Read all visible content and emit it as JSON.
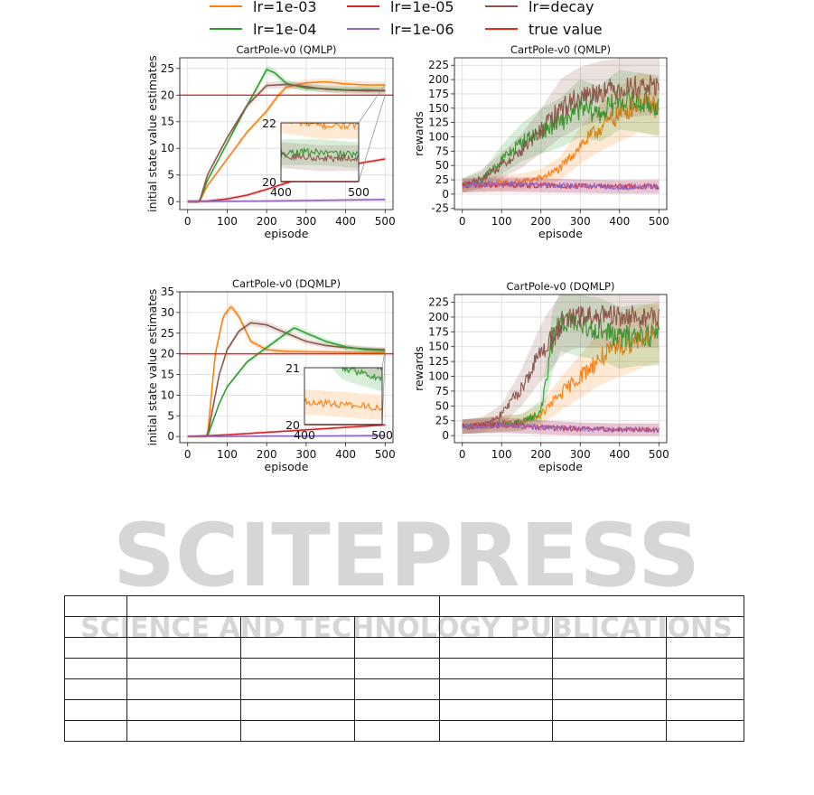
{
  "legend": [
    {
      "label": "lr=1e-03",
      "color": "#ff7f0e"
    },
    {
      "label": "lr=1e-05",
      "color": "#d62728"
    },
    {
      "label": "lr=decay",
      "color": "#8c564b"
    },
    {
      "label": "lr=1e-04",
      "color": "#2ca02c"
    },
    {
      "label": "lr=1e-06",
      "color": "#9467bd"
    },
    {
      "label": "true value",
      "color": "#e8291c"
    }
  ],
  "watermark": {
    "main": "SCITEPRESS",
    "sub": "SCIENCE AND TECHNOLOGY PUBLICATIONS"
  },
  "chart_data": [
    {
      "type": "line",
      "title": "CartPole-v0 (QMLP)",
      "xlabel": "episode",
      "ylabel": "initial state value estimates",
      "xlim": [
        -20,
        520
      ],
      "ylim": [
        -1.5,
        27
      ],
      "xticks": [
        0,
        100,
        200,
        300,
        400,
        500
      ],
      "yticks": [
        0,
        5,
        10,
        15,
        20,
        25
      ],
      "hline": 20,
      "series": [
        {
          "name": "lr=1e-03",
          "x": [
            0,
            20,
            30,
            50,
            100,
            150,
            200,
            230,
            250,
            300,
            350,
            400,
            450,
            500
          ],
          "y": [
            0,
            0,
            0,
            3,
            8,
            13,
            17,
            20,
            21.5,
            22.3,
            22.5,
            22.1,
            21.9,
            21.9
          ]
        },
        {
          "name": "lr=1e-04",
          "x": [
            0,
            20,
            30,
            50,
            100,
            150,
            180,
            200,
            220,
            250,
            300,
            350,
            400,
            450,
            500
          ],
          "y": [
            0,
            0,
            0,
            4,
            11,
            18,
            22,
            24.8,
            24.2,
            22.2,
            21.3,
            21.2,
            21.0,
            21.0,
            20.9
          ]
        },
        {
          "name": "lr=decay",
          "x": [
            0,
            20,
            30,
            50,
            100,
            150,
            200,
            250,
            300,
            350,
            400,
            450,
            500
          ],
          "y": [
            0,
            0,
            0,
            5,
            12,
            18,
            21.8,
            22.0,
            21.6,
            21.1,
            20.9,
            20.8,
            20.8
          ]
        },
        {
          "name": "lr=1e-05",
          "x": [
            0,
            50,
            100,
            150,
            200,
            250,
            300,
            350,
            400,
            450,
            500
          ],
          "y": [
            0,
            0.1,
            0.5,
            1.2,
            2.3,
            3.5,
            4.7,
            5.8,
            6.7,
            7.4,
            8.0
          ]
        },
        {
          "name": "lr=1e-06",
          "x": [
            0,
            100,
            200,
            300,
            400,
            500
          ],
          "y": [
            0,
            0.05,
            0.1,
            0.2,
            0.3,
            0.4
          ]
        }
      ],
      "inset": {
        "xlim": [
          400,
          500
        ],
        "ylim": [
          20,
          22
        ],
        "xticks": [
          400,
          500
        ],
        "yticks": [
          20,
          22
        ]
      }
    },
    {
      "type": "line",
      "title": "CartPole-v0 (QMLP)",
      "xlabel": "episode",
      "ylabel": "rewards",
      "xlim": [
        -20,
        520
      ],
      "ylim": [
        -27,
        238
      ],
      "xticks": [
        0,
        100,
        200,
        300,
        400,
        500
      ],
      "yticks": [
        -25,
        0,
        25,
        50,
        75,
        100,
        125,
        150,
        175,
        200,
        225
      ],
      "series": [
        {
          "name": "lr=1e-03",
          "x": [
            0,
            50,
            100,
            150,
            200,
            250,
            300,
            350,
            400,
            450,
            500
          ],
          "y": [
            15,
            18,
            20,
            22,
            28,
            45,
            85,
            115,
            140,
            160,
            150
          ]
        },
        {
          "name": "lr=1e-04",
          "x": [
            0,
            50,
            100,
            150,
            200,
            250,
            300,
            350,
            400,
            450,
            500
          ],
          "y": [
            15,
            25,
            60,
            90,
            110,
            125,
            150,
            140,
            165,
            160,
            155
          ]
        },
        {
          "name": "lr=decay",
          "x": [
            0,
            50,
            100,
            150,
            200,
            250,
            300,
            350,
            400,
            450,
            500
          ],
          "y": [
            15,
            28,
            50,
            75,
            110,
            150,
            170,
            180,
            185,
            188,
            190
          ]
        },
        {
          "name": "lr=1e-05",
          "x": [
            0,
            100,
            200,
            300,
            400,
            500
          ],
          "y": [
            15,
            16,
            15,
            14,
            13,
            14
          ]
        },
        {
          "name": "lr=1e-06",
          "x": [
            0,
            100,
            200,
            300,
            400,
            500
          ],
          "y": [
            15,
            18,
            16,
            14,
            12,
            12
          ]
        }
      ]
    },
    {
      "type": "line",
      "title": "CartPole-v0 (DQMLP)",
      "xlabel": "episode",
      "ylabel": "initial state value estimates",
      "xlim": [
        -20,
        520
      ],
      "ylim": [
        -1.5,
        35
      ],
      "xticks": [
        0,
        100,
        200,
        300,
        400,
        500
      ],
      "yticks": [
        0,
        5,
        10,
        15,
        20,
        25,
        30,
        35
      ],
      "hline": 20,
      "series": [
        {
          "name": "lr=1e-03",
          "x": [
            0,
            40,
            50,
            70,
            90,
            110,
            130,
            160,
            200,
            250,
            300,
            400,
            500
          ],
          "y": [
            0,
            0,
            0,
            20,
            29,
            31.5,
            29,
            23,
            21,
            20.6,
            20.5,
            20.4,
            20.3
          ]
        },
        {
          "name": "lr=decay",
          "x": [
            0,
            40,
            50,
            80,
            100,
            130,
            160,
            200,
            250,
            300,
            350,
            400,
            450,
            500
          ],
          "y": [
            0,
            0,
            0,
            15,
            21,
            25.5,
            27.5,
            27,
            25,
            23,
            22,
            21.5,
            21.2,
            21.0
          ]
        },
        {
          "name": "lr=1e-04",
          "x": [
            0,
            40,
            50,
            80,
            100,
            150,
            200,
            250,
            270,
            300,
            350,
            400,
            450,
            500
          ],
          "y": [
            0,
            0,
            0,
            8,
            12,
            18,
            21.5,
            25,
            26.3,
            25,
            23,
            21.7,
            21.0,
            20.8
          ]
        },
        {
          "name": "lr=1e-05",
          "x": [
            0,
            100,
            200,
            300,
            400,
            500
          ],
          "y": [
            0,
            0.4,
            1,
            1.6,
            2.2,
            2.8
          ]
        },
        {
          "name": "lr=1e-06",
          "x": [
            0,
            100,
            200,
            300,
            400,
            500
          ],
          "y": [
            0,
            0,
            0.1,
            0.1,
            0.15,
            0.2
          ]
        }
      ],
      "inset": {
        "xlim": [
          400,
          500
        ],
        "ylim": [
          20,
          21
        ],
        "xticks": [
          400,
          500
        ],
        "yticks": [
          20,
          21
        ]
      }
    },
    {
      "type": "line",
      "title": "CartPole-v0 (DQMLP)",
      "xlabel": "episode",
      "ylabel": "rewards",
      "xlim": [
        -20,
        520
      ],
      "ylim": [
        -12,
        238
      ],
      "xticks": [
        0,
        100,
        200,
        300,
        400,
        500
      ],
      "yticks": [
        0,
        25,
        50,
        75,
        100,
        125,
        150,
        175,
        200,
        225
      ],
      "series": [
        {
          "name": "lr=1e-03",
          "x": [
            0,
            50,
            100,
            150,
            200,
            250,
            300,
            350,
            400,
            450,
            500
          ],
          "y": [
            15,
            18,
            20,
            22,
            35,
            70,
            100,
            130,
            150,
            165,
            175
          ]
        },
        {
          "name": "lr=1e-04",
          "x": [
            0,
            50,
            100,
            150,
            200,
            230,
            250,
            300,
            350,
            400,
            450,
            500
          ],
          "y": [
            15,
            17,
            20,
            22,
            40,
            160,
            195,
            185,
            180,
            165,
            170,
            170
          ]
        },
        {
          "name": "lr=decay",
          "x": [
            0,
            50,
            100,
            150,
            200,
            250,
            280,
            300,
            350,
            400,
            450,
            500
          ],
          "y": [
            15,
            18,
            35,
            80,
            140,
            185,
            198,
            200,
            200,
            200,
            200,
            200
          ]
        },
        {
          "name": "lr=1e-05",
          "x": [
            0,
            100,
            200,
            300,
            400,
            500
          ],
          "y": [
            15,
            18,
            14,
            11,
            10,
            10
          ]
        },
        {
          "name": "lr=1e-06",
          "x": [
            0,
            100,
            200,
            300,
            400,
            500
          ],
          "y": [
            15,
            17,
            14,
            11,
            10,
            10
          ]
        }
      ]
    }
  ]
}
